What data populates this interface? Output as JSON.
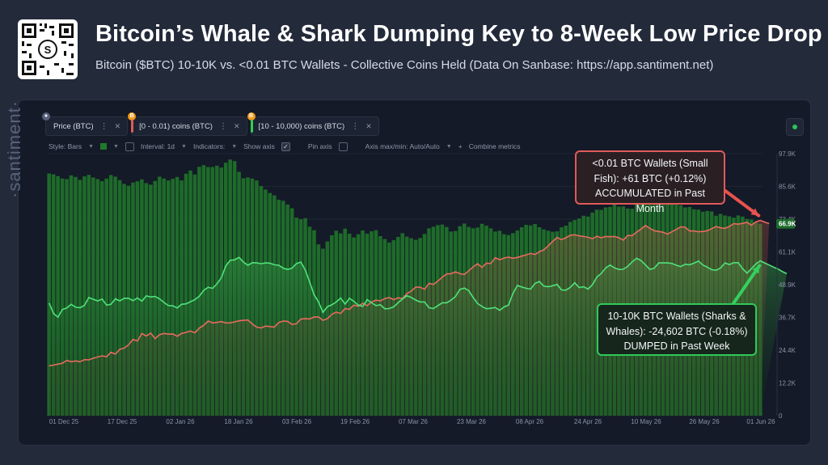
{
  "header": {
    "title": "Bitcoin’s Whale & Shark Dumping Key to 8-Week Low Price Drop",
    "subtitle": "Bitcoin ($BTC) 10-10K vs. <0.01 BTC Wallets - Collective Coins Held (Data On Sanbase: https://app.santiment.net)",
    "qr_logo": "S"
  },
  "metrics": [
    {
      "label": "Price (BTC)",
      "icon": "lock-icon",
      "color": "#8e99b3"
    },
    {
      "label": "[0 - 0.01) coins (BTC)",
      "icon": "bitcoin-icon",
      "color": "#e05a5a"
    },
    {
      "label": "[10 - 10,000) coins (BTC)",
      "icon": "bitcoin-icon",
      "color": "#33cc55"
    }
  ],
  "toolbar": {
    "style": "Style: Bars",
    "interval": "Interval: 1d",
    "indicators": "Indicators:",
    "show_axis": "Show axis",
    "pin_axis": "Pin axis",
    "axis_maxmin": "Axis max/min: Auto/Auto",
    "combine": "Combine metrics",
    "checkmark": "✓",
    "plus": "+"
  },
  "watermark": "·santiment·",
  "annotations": {
    "small_fish": "<0.01 BTC Wallets (Small Fish): +61 BTC (+0.12%) ACCUMULATED in Past Month",
    "whales": "10-10K BTC Wallets (Sharks & Whales): -24,602 BTC (-0.18%) DUMPED in Past Week"
  },
  "chart_data": {
    "type": "line",
    "x_ticks": [
      "01 Dec 25",
      "17 Dec 25",
      "02 Jan 26",
      "18 Jan 26",
      "03 Feb 26",
      "19 Feb 26",
      "07 Mar 26",
      "23 Mar 26",
      "08 Apr 26",
      "24 Apr 26",
      "10 May 26",
      "26 May 26",
      "01 Jun 26"
    ],
    "y_ticks": [
      "0",
      "12.2K",
      "24.4K",
      "36.7K",
      "48.9K",
      "61.1K",
      "73.4K",
      "85.6K",
      "97.9K"
    ],
    "ylim": [
      0,
      97900
    ],
    "price_label": "66.9K",
    "colors": {
      "price": "#1e6b2a",
      "small": "#e86a5e",
      "whale": "#4fe27a"
    },
    "series": [
      {
        "name": "Price (BTC)",
        "values": [
          90500,
          90200,
          89500,
          88600,
          88400,
          89800,
          89200,
          88100,
          89400,
          90000,
          89000,
          88400,
          87600,
          88600,
          89900,
          89300,
          88000,
          86600,
          85900,
          87100,
          87600,
          88300,
          86900,
          86300,
          87700,
          89300,
          88600,
          87900,
          88500,
          89200,
          87900,
          90400,
          91600,
          90100,
          93000,
          93600,
          92900,
          92900,
          93400,
          92700,
          94500,
          95700,
          95100,
          91100,
          88700,
          89000,
          88600,
          87900,
          85800,
          84500,
          83200,
          82300,
          80700,
          80300,
          78900,
          77500,
          74000,
          73400,
          73800,
          70600,
          69300,
          64000,
          62400,
          65100,
          67400,
          69100,
          68100,
          69900,
          68000,
          66600,
          67800,
          69200,
          68000,
          68900,
          69300,
          67100,
          66000,
          64700,
          65600,
          66800,
          68200,
          66900,
          66300,
          65700,
          66400,
          67900,
          70000,
          70600,
          71200,
          71400,
          70500,
          68800,
          69000,
          70800,
          71800,
          70500,
          70000,
          70300,
          71700,
          71000,
          70000,
          68800,
          69100,
          67800,
          67500,
          68200,
          69200,
          70400,
          71300,
          71100,
          71600,
          70400,
          69600,
          69100,
          68700,
          68900,
          70400,
          71000,
          72400,
          73100,
          73700,
          74700,
          74400,
          75900,
          77000,
          76900,
          77800,
          78000,
          78900,
          78100,
          78200,
          77400,
          77300,
          79400,
          78900,
          79900,
          80200,
          80200,
          81300,
          80400,
          80400,
          79200,
          78800,
          78600,
          77800,
          78000,
          77100,
          77000,
          76200,
          76500,
          76300,
          74700,
          75400,
          74800,
          74500,
          74000,
          74800,
          74400,
          73500,
          73300,
          72200,
          71700
        ]
      },
      {
        "name": "[0 - 0.01) coins (BTC)",
        "values": [
          19.0,
          19.3,
          19.7,
          20.0,
          21.1,
          20.6,
          20.9,
          20.6,
          21.4,
          21.3,
          21.9,
          22.4,
          22.8,
          22.5,
          24.2,
          23.5,
          25.3,
          25.8,
          27.1,
          29.1,
          28.5,
          31.4,
          30.4,
          31.5,
          29.4,
          30.9,
          31.4,
          31.1,
          31.2,
          30.3,
          31.4,
          31.8,
          32.3,
          31.6,
          33.4,
          34.5,
          36.1,
          35.4,
          35.6,
          35.9,
          35.4,
          35.4,
          35.8,
          36.2,
          36.4,
          36.5,
          35.0,
          33.8,
          33.5,
          34.2,
          34.0,
          33.8,
          35.6,
          36.1,
          36.0,
          34.8,
          35.1,
          36.9,
          37.0,
          36.9,
          37.7,
          37.7,
          36.4,
          37.0,
          38.7,
          39.5,
          39.0,
          40.9,
          40.6,
          42.2,
          41.8,
          42.9,
          42.0,
          43.4,
          44.1,
          43.8,
          44.7,
          45.1,
          44.3,
          45.0,
          44.7,
          46.6,
          47.6,
          49.1,
          49.0,
          48.2,
          50.5,
          50.1,
          51.4,
          52.8,
          54.1,
          54.2,
          54.9,
          54.2,
          53.9,
          55.3,
          56.8,
          58.0,
          56.6,
          58.2,
          58.1,
          60.3,
          59.5,
          60.2,
          60.5,
          60.1,
          60.4,
          60.9,
          61.4,
          61.9,
          61.5,
          62.6,
          63.3,
          64.8,
          66.5,
          68.0,
          67.2,
          67.9,
          68.9,
          69.0,
          68.6,
          68.4,
          68.1,
          67.5,
          68.5,
          67.9,
          68.4,
          68.3,
          68.4,
          67.9,
          67.0,
          68.8,
          68.7,
          70.1,
          71.2,
          72.6,
          71.5,
          70.6,
          70.3,
          70.0,
          69.3,
          70.2,
          71.1,
          72.1,
          71.9,
          70.5,
          70.5,
          70.2,
          70.3,
          70.6,
          71.4,
          72.2,
          71.7,
          71.5,
          72.2,
          73.3,
          73.1,
          73.4,
          73.8,
          72.7,
          74.0,
          74.5,
          73.9,
          73.3
        ]
      },
      {
        "name": "[10 - 10,000) coins (BTC)",
        "values": [
          43.0,
          39.0,
          37.6,
          40.5,
          41.1,
          42.5,
          41.4,
          41.2,
          42.1,
          45.1,
          44.4,
          43.8,
          44.5,
          42.2,
          42.5,
          44.6,
          43.8,
          44.8,
          44.8,
          43.9,
          44.9,
          43.7,
          45.7,
          45.3,
          45.5,
          44.6,
          43.2,
          42.0,
          41.9,
          41.1,
          42.5,
          42.7,
          43.5,
          44.3,
          45.6,
          47.8,
          49.0,
          48.6,
          50.3,
          52.7,
          57.2,
          59.3,
          59.5,
          60.4,
          58.6,
          57.4,
          58.4,
          58.3,
          58.0,
          58.3,
          58.2,
          57.6,
          57.4,
          56.3,
          55.8,
          56.3,
          58.1,
          58.6,
          55.6,
          51.0,
          46.1,
          43.4,
          39.4,
          41.6,
          42.3,
          43.4,
          44.9,
          42.6,
          44.8,
          43.6,
          42.2,
          41.7,
          44.3,
          43.1,
          42.0,
          42.3,
          40.8,
          40.9,
          41.5,
          43.1,
          44.5,
          45.8,
          45.1,
          44.1,
          43.4,
          43.4,
          41.2,
          40.9,
          42.0,
          43.1,
          43.1,
          44.1,
          45.5,
          48.2,
          48.7,
          47.7,
          45.1,
          42.8,
          41.7,
          40.8,
          41.0,
          41.3,
          40.2,
          41.5,
          42.2,
          46.6,
          49.7,
          49.1,
          48.6,
          48.3,
          50.5,
          51.2,
          49.4,
          49.2,
          49.6,
          50.1,
          48.0,
          47.9,
          49.0,
          50.7,
          48.9,
          49.2,
          48.3,
          50.0,
          52.9,
          54.3,
          56.4,
          57.5,
          56.4,
          55.8,
          55.9,
          57.0,
          58.7,
          60.1,
          59.2,
          57.6,
          55.8,
          56.3,
          58.3,
          58.3,
          58.3,
          58.1,
          57.4,
          56.9,
          57.8,
          57.6,
          58.2,
          59.0,
          57.5,
          56.7,
          55.7,
          55.5,
          56.4,
          58.3,
          57.7,
          58.4,
          58.4,
          56.1,
          54.4,
          56.1,
          57.9,
          59.1,
          58.3,
          57.5,
          56.7,
          56.0,
          55.0,
          54.2
        ]
      }
    ]
  }
}
